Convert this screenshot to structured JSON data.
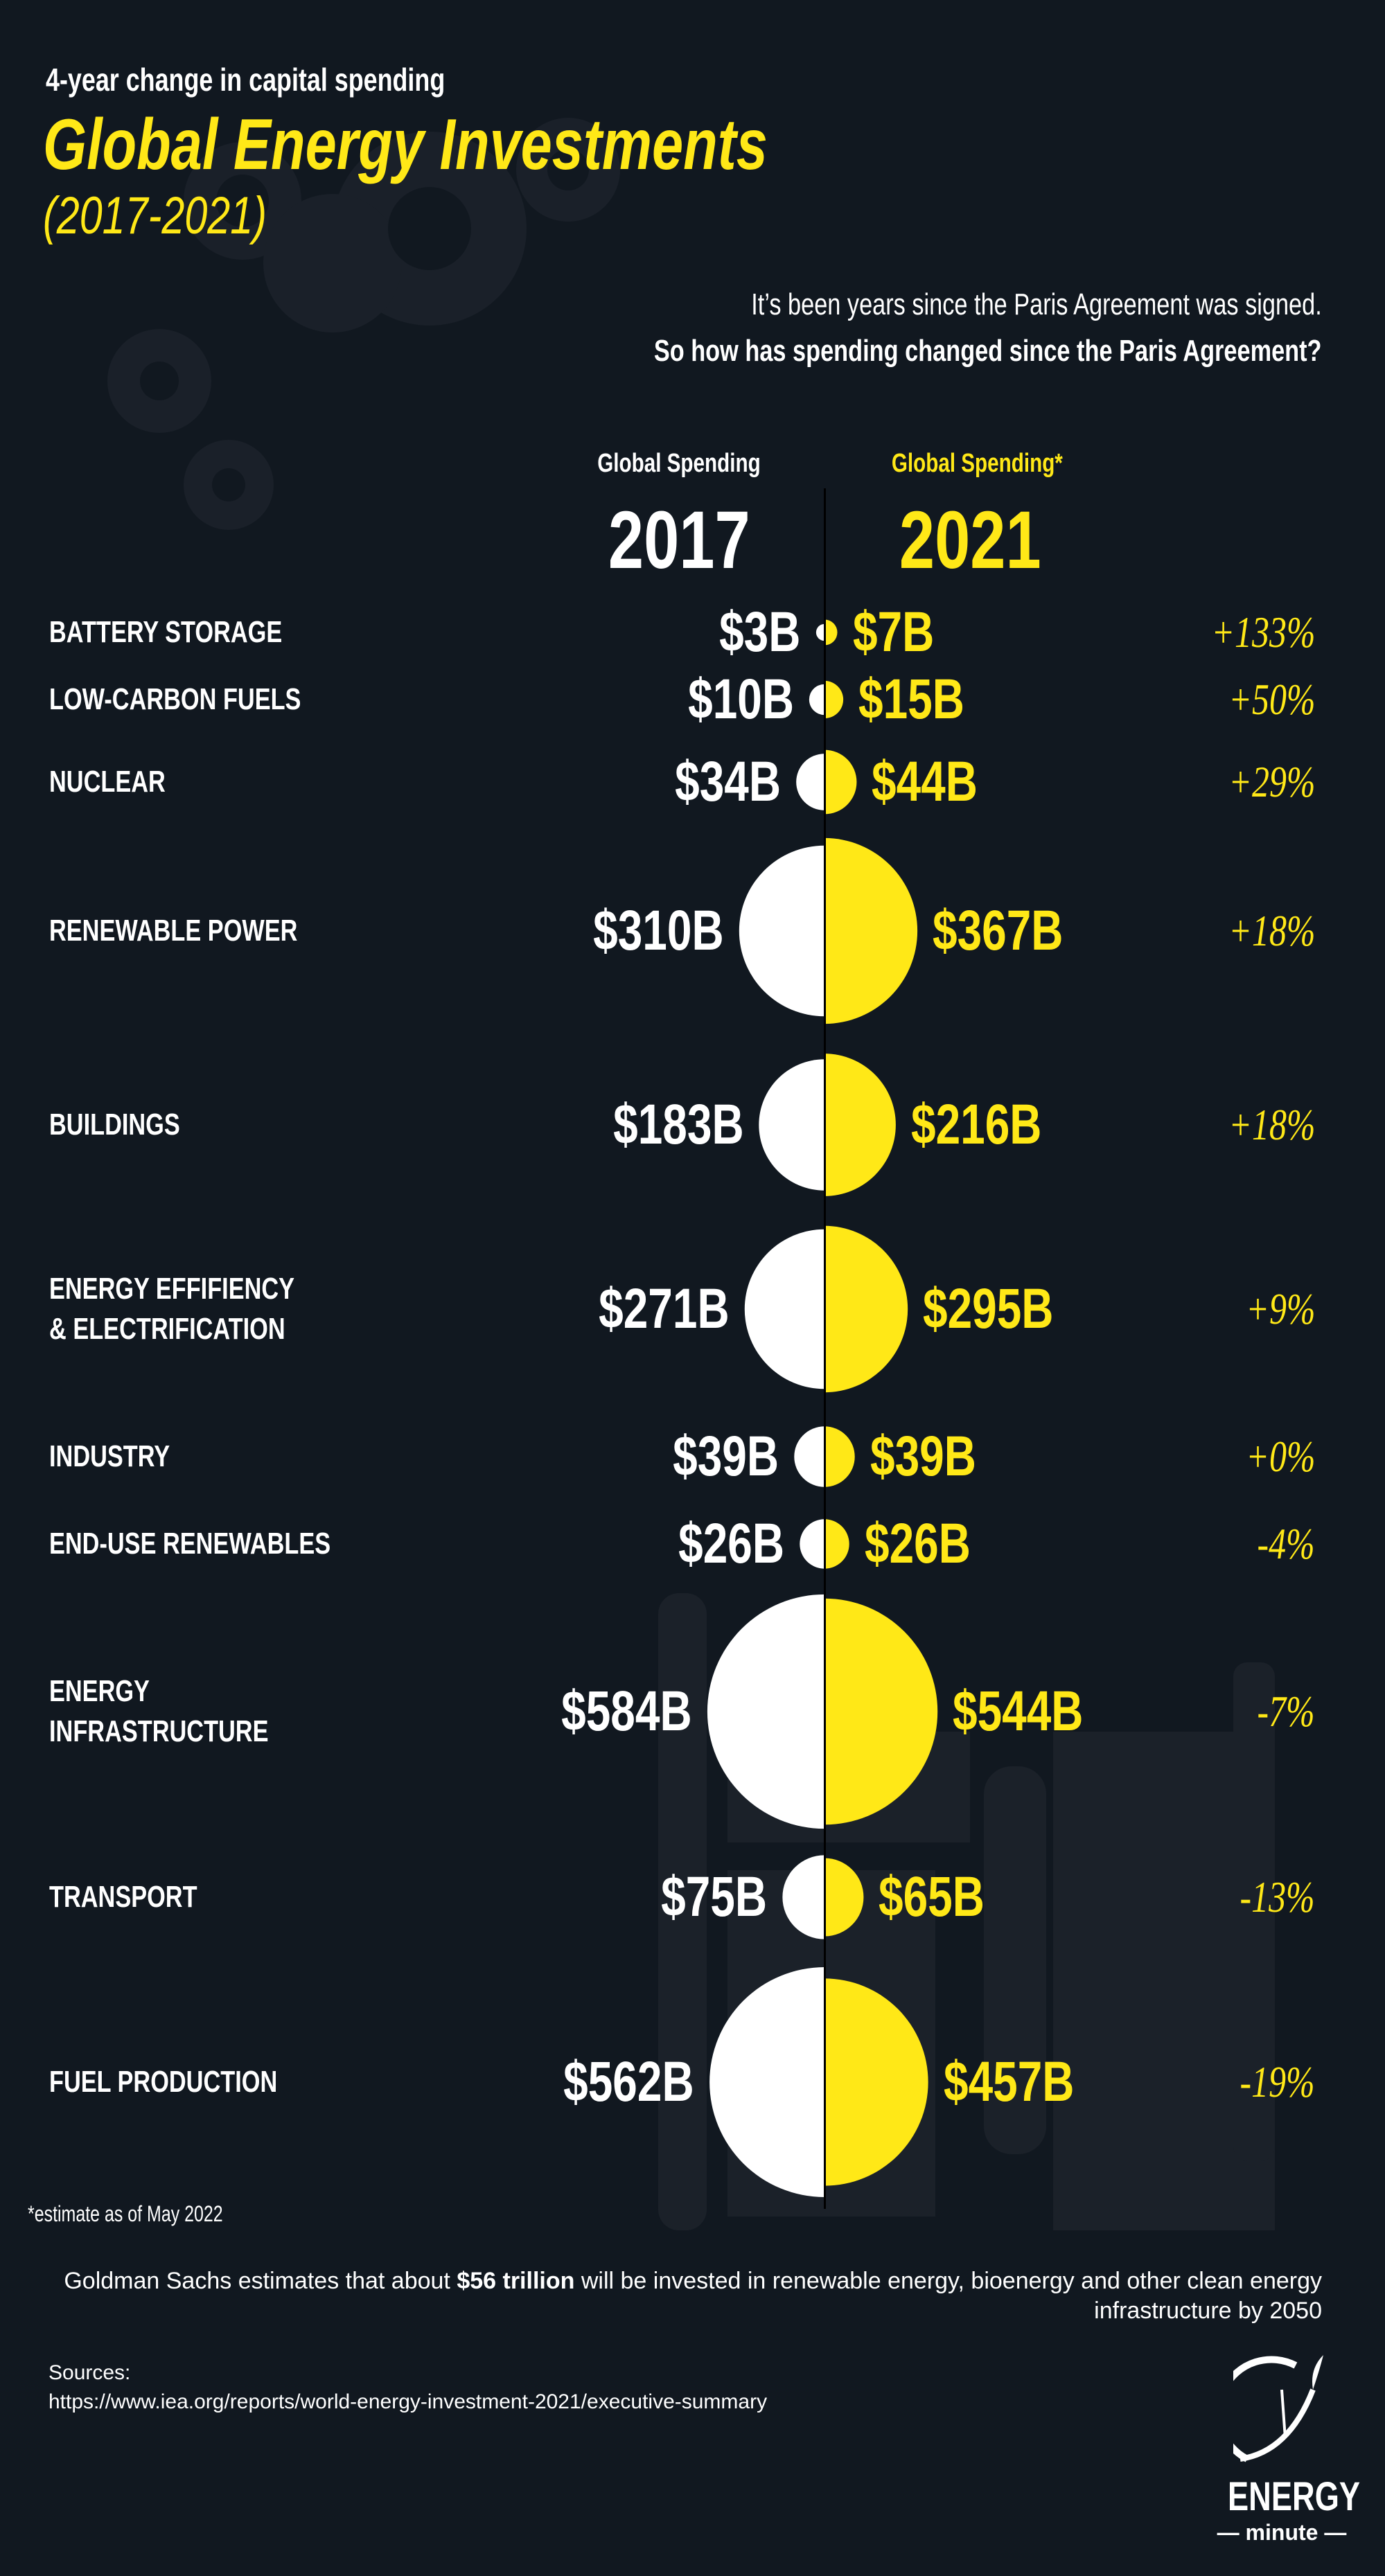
{
  "header": {
    "subtitle": "4-year change in capital spending",
    "title": "Global Energy Investments",
    "years": "(2017-2021)",
    "intro_line1": "It’s been years since the Paris Agreement was signed.",
    "intro_line2": "So how has spending changed since the Paris Agreement?"
  },
  "columns": {
    "left_label": "Global Spending",
    "left_year": "2017",
    "right_label": "Global Spending*",
    "right_year": "2021"
  },
  "colors": {
    "background": "#111820",
    "accent": "#FFE817",
    "white": "#FFFFFF"
  },
  "chart_data": {
    "type": "paired-half-circle",
    "title": "Global Energy Investments (2017-2021)",
    "unit": "USD billions",
    "series": [
      {
        "name": "2017"
      },
      {
        "name": "2021"
      }
    ],
    "rows": [
      {
        "category": "BATTERY STORAGE",
        "v2017": 3,
        "v2021": 7,
        "label2017": "$3B",
        "label2021": "$7B",
        "change": "+133%"
      },
      {
        "category": "LOW-CARBON FUELS",
        "v2017": 10,
        "v2021": 15,
        "label2017": "$10B",
        "label2021": "$15B",
        "change": "+50%"
      },
      {
        "category": "NUCLEAR",
        "v2017": 34,
        "v2021": 44,
        "label2017": "$34B",
        "label2021": "$44B",
        "change": "+29%"
      },
      {
        "category": "RENEWABLE POWER",
        "v2017": 310,
        "v2021": 367,
        "label2017": "$310B",
        "label2021": "$367B",
        "change": "+18%"
      },
      {
        "category": "BUILDINGS",
        "v2017": 183,
        "v2021": 216,
        "label2017": "$183B",
        "label2021": "$216B",
        "change": "+18%"
      },
      {
        "category": "ENERGY EFFIFIENCY\n& ELECTRIFICATION",
        "v2017": 271,
        "v2021": 295,
        "label2017": "$271B",
        "label2021": "$295B",
        "change": "+9%"
      },
      {
        "category": "INDUSTRY",
        "v2017": 39,
        "v2021": 39,
        "label2017": "$39B",
        "label2021": "$39B",
        "change": "+0%"
      },
      {
        "category": "END-USE RENEWABLES",
        "v2017": 26,
        "v2021": 26,
        "label2017": "$26B",
        "label2021": "$26B",
        "change": "-4%"
      },
      {
        "category": "ENERGY\nINFRASTRUCTURE",
        "v2017": 584,
        "v2021": 544,
        "label2017": "$584B",
        "label2021": "$544B",
        "change": "-7%"
      },
      {
        "category": "TRANSPORT",
        "v2017": 75,
        "v2021": 65,
        "label2017": "$75B",
        "label2021": "$65B",
        "change": "-13%"
      },
      {
        "category": "FUEL PRODUCTION",
        "v2017": 562,
        "v2021": 457,
        "label2017": "$562B",
        "label2021": "$457B",
        "change": "-19%"
      }
    ]
  },
  "footer": {
    "footnote": "*estimate as of May 2022",
    "goldman_pre": "Goldman Sachs estimates that about ",
    "goldman_bold": "$56 trillion",
    "goldman_post": " will be invested in renewable energy, bioenergy and other clean energy infrastructure by 2050",
    "sources_label": "Sources:",
    "sources_url": "https://www.iea.org/reports/world-energy-investment-2021/executive-summary",
    "logo_word": "ENERGY",
    "logo_sub": "— minute —"
  }
}
